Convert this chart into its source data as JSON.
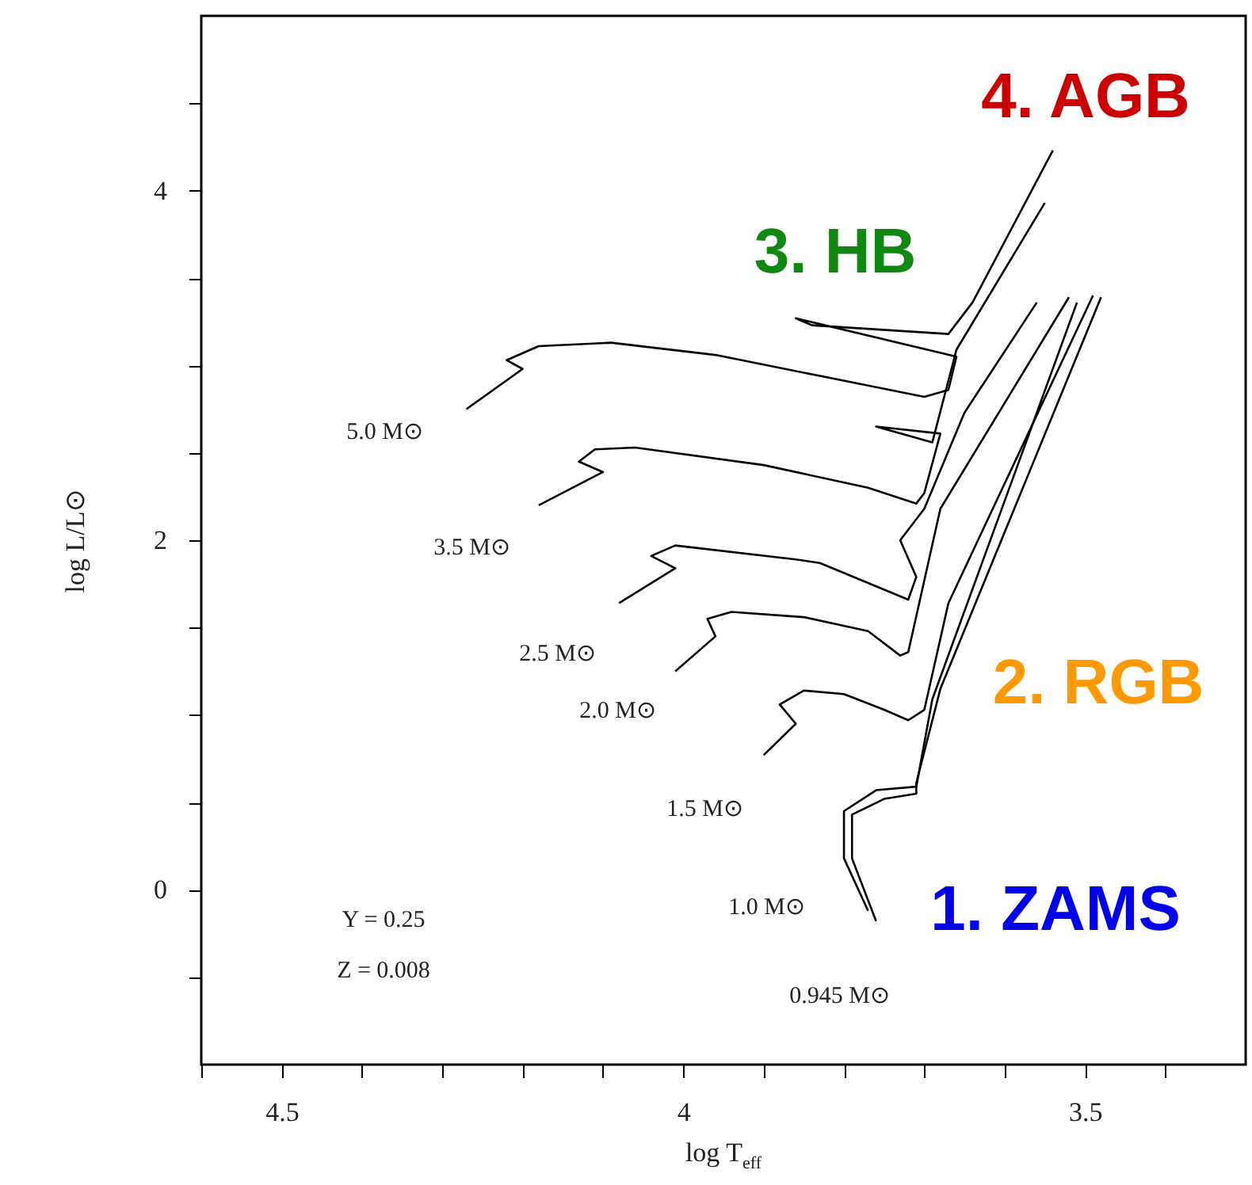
{
  "chart_data": {
    "type": "line",
    "xlabel": "log T$_{eff}$",
    "ylabel": "log L/L⊙",
    "xlim": [
      4.6,
      3.3
    ],
    "ylim": [
      -1,
      5
    ],
    "xticks": [
      {
        "value": 4.6,
        "label": null
      },
      4.5,
      {
        "value": 4.4,
        "label": null
      },
      {
        "value": 4.3,
        "label": null
      },
      {
        "value": 4.2,
        "label": null
      },
      {
        "value": 4.1,
        "label": null
      },
      4,
      {
        "value": 3.9,
        "label": null
      },
      {
        "value": 3.8,
        "label": null
      },
      {
        "value": 3.7,
        "label": null
      },
      {
        "value": 3.6,
        "label": null
      },
      3.5,
      {
        "value": 3.4,
        "label": null
      }
    ],
    "yticks": [
      {
        "value": -0.5,
        "label": null
      },
      0,
      {
        "value": 0.5,
        "label": null
      },
      {
        "value": 1,
        "label": null
      },
      {
        "value": 1.5,
        "label": null
      },
      2,
      {
        "value": 2.5,
        "label": null
      },
      {
        "value": 3,
        "label": null
      },
      {
        "value": 3.5,
        "label": null
      },
      4,
      {
        "value": 4.5,
        "label": null
      }
    ],
    "grid": false,
    "marker": "none",
    "line_style": "solid",
    "series": [
      {
        "color": "#000000",
        "x": [
          4.27,
          4.2,
          4.22,
          4.18,
          4.09,
          3.96,
          3.83,
          3.7,
          3.67,
          3.66,
          3.86,
          3.84,
          3.67,
          3.64,
          3.54
        ],
        "values": [
          2.75,
          2.98,
          3.03,
          3.11,
          3.13,
          3.06,
          2.94,
          2.82,
          2.86,
          3.05,
          3.27,
          3.23,
          3.18,
          3.36,
          4.23
        ]
      },
      {
        "color": "#000000",
        "x": [
          4.18,
          4.1,
          4.13,
          4.11,
          4.06,
          3.9,
          3.77,
          3.71,
          3.7,
          3.68,
          3.76,
          3.69,
          3.66,
          3.55
        ],
        "values": [
          2.2,
          2.39,
          2.45,
          2.52,
          2.53,
          2.43,
          2.3,
          2.21,
          2.27,
          2.61,
          2.65,
          2.56,
          3.09,
          3.93
        ]
      },
      {
        "color": "#000000",
        "x": [
          4.08,
          4.01,
          4.04,
          4.01,
          3.86,
          3.83,
          3.72,
          3.71,
          3.73,
          3.7,
          3.65,
          3.56
        ],
        "values": [
          1.64,
          1.84,
          1.91,
          1.97,
          1.89,
          1.87,
          1.66,
          1.79,
          2.0,
          2.18,
          2.73,
          3.36
        ]
      },
      {
        "color": "#000000",
        "x": [
          4.01,
          3.96,
          3.97,
          3.94,
          3.85,
          3.77,
          3.73,
          3.72,
          3.68,
          3.52
        ],
        "values": [
          1.25,
          1.45,
          1.55,
          1.59,
          1.56,
          1.48,
          1.34,
          1.36,
          2.18,
          3.39
        ]
      },
      {
        "color": "#000000",
        "x": [
          3.9,
          3.86,
          3.88,
          3.85,
          3.8,
          3.75,
          3.72,
          3.7,
          3.67,
          3.49
        ],
        "values": [
          0.77,
          0.95,
          1.06,
          1.14,
          1.12,
          1.03,
          0.97,
          1.03,
          1.64,
          3.4
        ]
      },
      {
        "color": "#000000",
        "x": [
          3.76,
          3.79,
          3.79,
          3.75,
          3.71,
          3.71,
          3.68,
          3.48
        ],
        "values": [
          -0.18,
          0.18,
          0.43,
          0.52,
          0.55,
          0.61,
          1.15,
          3.39
        ]
      },
      {
        "color": "#000000",
        "x": [
          3.77,
          3.8,
          3.8,
          3.76,
          3.71,
          3.69,
          3.51
        ],
        "values": [
          -0.12,
          0.18,
          0.45,
          0.57,
          0.59,
          1.09,
          3.36
        ]
      }
    ],
    "annotations": [
      "5.0 M⊙",
      "3.5 M⊙",
      "2.5 M⊙",
      "2.0 M⊙",
      "1.5 M⊙",
      "1.0 M⊙",
      "0.945 M⊙",
      "Y = 0.25",
      "Z = 0.008",
      "4.  AGB",
      "3.  HB",
      "2.  RGB",
      "1.  ZAMS"
    ]
  }
}
